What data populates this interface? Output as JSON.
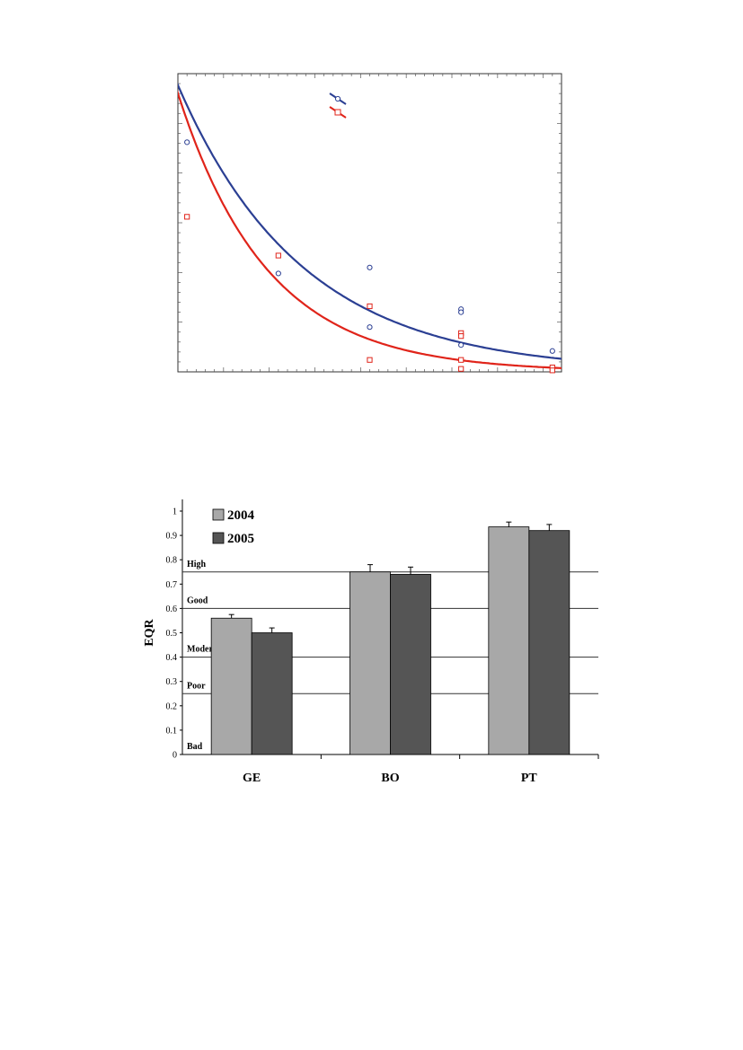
{
  "chart_data": [
    {
      "type": "scatter",
      "title": "",
      "xlabel": "",
      "ylabel": "",
      "grid": false,
      "legend": "top-center",
      "colors": {
        "blue": "#2b3f93",
        "red": "#e0241a"
      },
      "series": [
        {
          "color": "#2b3f93",
          "marker": "circle",
          "points": [
            [
              0,
              0.77
            ],
            [
              1,
              0.33
            ],
            [
              2,
              0.35
            ],
            [
              2,
              0.15
            ],
            [
              3,
              0.21
            ],
            [
              3,
              0.2
            ],
            [
              3,
              0.09
            ],
            [
              4,
              0.07
            ]
          ],
          "curve": {
            "a": 1.15,
            "b": 0.46,
            "c": 0.0
          }
        },
        {
          "color": "#e0241a",
          "marker": "square",
          "points": [
            [
              0,
              0.52
            ],
            [
              1,
              0.39
            ],
            [
              2,
              0.22
            ],
            [
              2,
              0.04
            ],
            [
              3,
              0.13
            ],
            [
              3,
              0.12
            ],
            [
              3,
              0.04
            ],
            [
              3,
              0.01
            ],
            [
              4,
              0.015
            ],
            [
              4,
              0.005
            ]
          ],
          "curve": {
            "a": 1.15,
            "b": 0.64,
            "c": 0.0
          }
        }
      ],
      "xlim": [
        -0.1,
        4.1
      ],
      "ylim": [
        0,
        1.0
      ]
    },
    {
      "type": "bar",
      "title": "",
      "xlabel": "",
      "ylabel": "EQR",
      "ylim": [
        0,
        1
      ],
      "yticks": [
        "0",
        "0.1",
        "0.2",
        "0.3",
        "0.4",
        "0.5",
        "0.6",
        "0.7",
        "0.8",
        "0.9",
        "1"
      ],
      "categories": [
        "GE",
        "BO",
        "PT"
      ],
      "series": [
        {
          "name": "2004",
          "color": "#a8a8a8",
          "values": [
            0.56,
            0.75,
            0.935
          ],
          "errors": [
            0.015,
            0.03,
            0.02
          ]
        },
        {
          "name": "2005",
          "color": "#555555",
          "values": [
            0.5,
            0.74,
            0.92
          ],
          "errors": [
            0.02,
            0.03,
            0.025
          ]
        }
      ],
      "thresholds": [
        {
          "label": "High",
          "value": 0.75
        },
        {
          "label": "Good",
          "value": 0.6
        },
        {
          "label": "Moderate",
          "value": 0.4
        },
        {
          "label": "Poor",
          "value": 0.25
        },
        {
          "label": "Bad",
          "value": 0.0
        }
      ],
      "legend": "top-left"
    }
  ]
}
